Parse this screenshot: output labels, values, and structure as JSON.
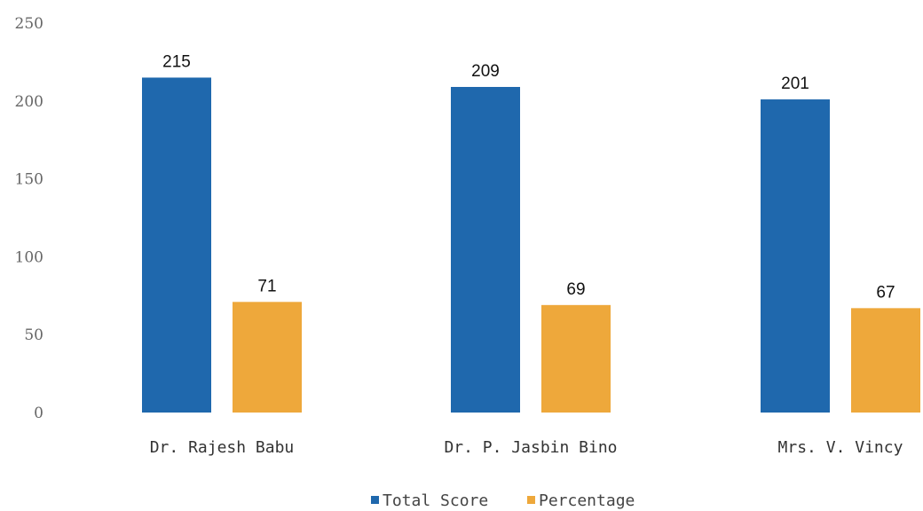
{
  "chart_data": {
    "type": "bar",
    "categories": [
      "Dr. Rajesh Babu",
      "Dr. P. Jasbin Bino",
      "Mrs. V. Vincy"
    ],
    "series": [
      {
        "name": "Total Score",
        "values": [
          215,
          209,
          201
        ],
        "color": "#1f68ad"
      },
      {
        "name": "Percentage",
        "values": [
          71,
          69,
          67
        ],
        "color": "#eea83b"
      }
    ],
    "data_labels": [
      [
        "215",
        "209",
        "201"
      ],
      [
        "71",
        "69",
        "67"
      ]
    ],
    "ylim": [
      0,
      250
    ],
    "yticks": [
      "0",
      "50",
      "100",
      "150",
      "200",
      "250"
    ],
    "grid": false,
    "legend": "bottom-center"
  }
}
